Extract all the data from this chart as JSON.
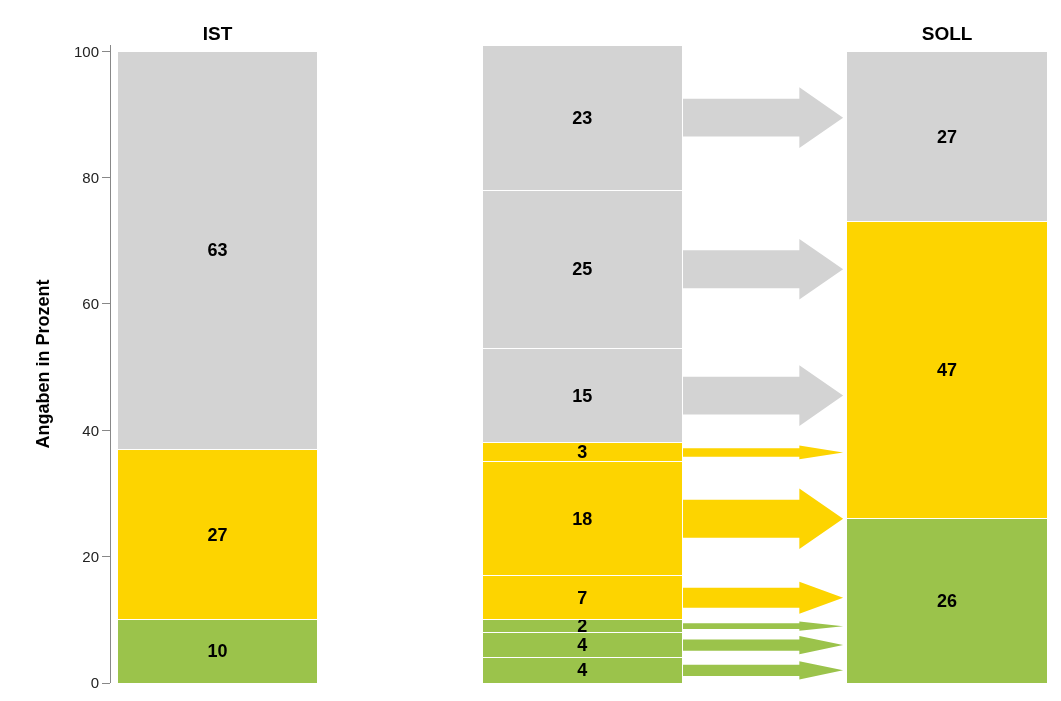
{
  "chart_data": {
    "type": "bar",
    "stacked": true,
    "ylabel": "Angaben in Prozent",
    "categories": [
      "IST",
      null,
      "SOLL"
    ],
    "ylim": [
      0,
      101
    ],
    "yticks": [
      0,
      20,
      40,
      60,
      80,
      100
    ],
    "data_labels": true,
    "series": [
      {
        "color": "#9bc34b",
        "values": [
          10,
          null,
          null
        ]
      },
      {
        "color": "#fdd400",
        "values": [
          27,
          null,
          null
        ]
      },
      {
        "color": "#d3d3d3",
        "values": [
          63,
          null,
          null
        ]
      },
      {
        "color": "#9bc34b",
        "values": [
          null,
          4,
          null
        ]
      },
      {
        "color": "#9bc34b",
        "values": [
          null,
          4,
          null
        ]
      },
      {
        "color": "#9bc34b",
        "values": [
          null,
          2,
          null
        ]
      },
      {
        "color": "#fdd400",
        "values": [
          null,
          7,
          null
        ]
      },
      {
        "color": "#fdd400",
        "values": [
          null,
          18,
          null
        ]
      },
      {
        "color": "#fdd400",
        "values": [
          null,
          3,
          null
        ]
      },
      {
        "color": "#d3d3d3",
        "values": [
          null,
          15,
          null
        ]
      },
      {
        "color": "#d3d3d3",
        "values": [
          null,
          25,
          null
        ]
      },
      {
        "color": "#d3d3d3",
        "values": [
          null,
          23,
          null
        ]
      },
      {
        "color": "#9bc34b",
        "values": [
          null,
          null,
          26
        ]
      },
      {
        "color": "#fdd400",
        "values": [
          null,
          null,
          47
        ]
      },
      {
        "color": "#d3d3d3",
        "values": [
          null,
          null,
          27
        ]
      }
    ]
  }
}
